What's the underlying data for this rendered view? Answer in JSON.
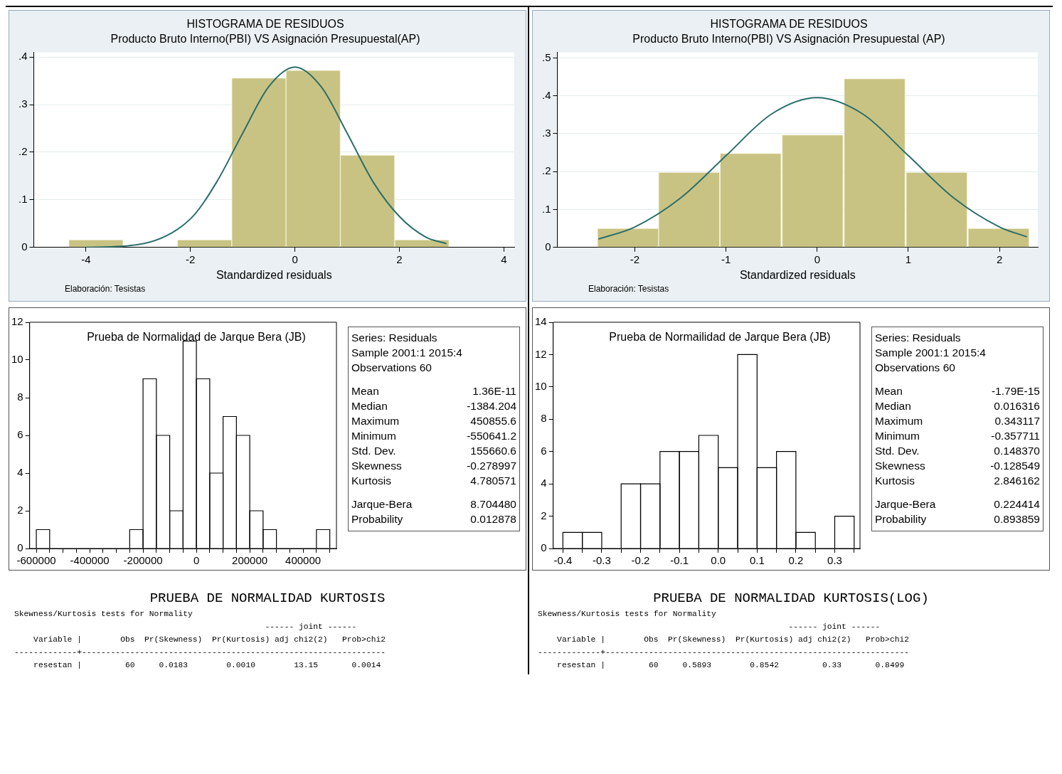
{
  "chart_data": [
    {
      "type": "histogram",
      "title": "HISTOGRAMA DE RESIDUOS",
      "subtitle": "Producto Bruto Interno(PBI) VS Asignación Presupuestal(AP)",
      "xlabel": "Standardized residuals",
      "annotations": [
        "Elaboración: Tesistas"
      ],
      "bins": [
        -4.33,
        -3.29,
        -2.25,
        -1.21,
        -0.17,
        0.87,
        1.91,
        2.95
      ],
      "values": [
        0.016,
        0,
        0.016,
        0.356,
        0.372,
        0.194,
        0.016
      ],
      "color": "#c9c383",
      "series": [
        {
          "type": "line",
          "color": "#2a6e6b",
          "x": [
            -4,
            -3,
            -2,
            -1.5,
            -1,
            -0.5,
            0,
            0.5,
            1,
            1.5,
            2,
            2.5,
            2.9
          ],
          "values": [
            0,
            0.006,
            0.06,
            0.137,
            0.24,
            0.338,
            0.379,
            0.338,
            0.24,
            0.137,
            0.065,
            0.022,
            0.008
          ]
        }
      ],
      "xlim": [
        -5,
        4.2
      ],
      "ylim": [
        0,
        0.41
      ],
      "xticks": [
        -4,
        -2,
        0,
        2,
        4
      ],
      "yticks": [
        0,
        {
          "value": 0.1,
          "label": ".1"
        },
        {
          "value": 0.2,
          "label": ".2"
        },
        {
          "value": 0.3,
          "label": ".3"
        },
        {
          "value": 0.4,
          "label": ".4"
        }
      ],
      "grid": "y"
    },
    {
      "type": "histogram",
      "title": "HISTOGRAMA DE RESIDUOS",
      "subtitle": "Producto Bruto Interno(PBI) VS Asignación Presupuestal (AP)",
      "xlabel": "Standardized residuals",
      "annotations": [
        "Elaboración: Tesistas"
      ],
      "bins": [
        -2.41,
        -1.74,
        -1.07,
        -0.39,
        0.29,
        0.97,
        1.65,
        2.33
      ],
      "values": [
        0.05,
        0.198,
        0.248,
        0.297,
        0.445,
        0.198,
        0.05
      ],
      "color": "#c9c383",
      "series": [
        {
          "type": "line",
          "color": "#2a6e6b",
          "x": [
            -2.4,
            -2,
            -1.5,
            -1,
            -0.5,
            0,
            0.5,
            1,
            1.5,
            2,
            2.3
          ],
          "values": [
            0.022,
            0.054,
            0.13,
            0.242,
            0.352,
            0.395,
            0.352,
            0.242,
            0.13,
            0.054,
            0.028
          ]
        }
      ],
      "xlim": [
        -2.85,
        2.42
      ],
      "ylim": [
        0,
        0.515
      ],
      "xticks": [
        -2,
        -1,
        0,
        1,
        2
      ],
      "yticks": [
        0,
        {
          "value": 0.1,
          "label": ".1"
        },
        {
          "value": 0.2,
          "label": ".2"
        },
        {
          "value": 0.3,
          "label": ".3"
        },
        {
          "value": 0.4,
          "label": ".4"
        },
        {
          "value": 0.5,
          "label": ".5"
        }
      ],
      "grid": "y"
    },
    {
      "type": "histogram",
      "title": "Prueba de Normalidad de Jarque Bera (JB)",
      "annotations": [
        "Series: Residuals",
        "Sample 2001:1 2015:4",
        "Observations 60",
        "Mean",
        "1.36E-11",
        "Median",
        "-1384.204",
        "Maximum",
        "450855.6",
        "Minimum",
        "-550641.2",
        "Std. Dev.",
        "155660.6",
        "Skewness",
        "-0.278997",
        "Kurtosis",
        "4.780571",
        "Jarque-Bera",
        "8.704480",
        "Probability",
        "0.012878"
      ],
      "bins": [
        -600000,
        -550000,
        -500000,
        -450000,
        -400000,
        -350000,
        -300000,
        -250000,
        -200000,
        -150000,
        -100000,
        -50000,
        0,
        50000,
        100000,
        150000,
        200000,
        250000,
        300000,
        350000,
        400000,
        450000,
        500000
      ],
      "values": [
        1,
        0,
        0,
        0,
        0,
        0,
        0,
        1,
        9,
        6,
        2,
        11,
        9,
        4,
        7,
        6,
        2,
        1,
        0,
        0,
        0,
        1
      ],
      "color": "#ffffff",
      "xlim": [
        -625000,
        525000
      ],
      "ylim": [
        0,
        12
      ],
      "xticks": [
        -600000,
        {
          "value": -550000,
          "label": null
        },
        {
          "value": -500000,
          "label": null
        },
        {
          "value": -450000,
          "label": null
        },
        -400000,
        {
          "value": -350000,
          "label": null
        },
        {
          "value": -300000,
          "label": null
        },
        {
          "value": -250000,
          "label": null
        },
        -200000,
        {
          "value": -150000,
          "label": null
        },
        {
          "value": -100000,
          "label": null
        },
        {
          "value": -50000,
          "label": null
        },
        0,
        {
          "value": 50000,
          "label": null
        },
        {
          "value": 100000,
          "label": null
        },
        {
          "value": 150000,
          "label": null
        },
        200000,
        {
          "value": 250000,
          "label": null
        },
        {
          "value": 300000,
          "label": null
        },
        {
          "value": 350000,
          "label": null
        },
        400000,
        {
          "value": 450000,
          "label": null
        },
        {
          "value": 500000,
          "label": null
        }
      ],
      "yticks": [
        0,
        2,
        4,
        6,
        8,
        10,
        12
      ]
    },
    {
      "type": "histogram",
      "title": "Prueba de Normailidad de Jarque Bera (JB)",
      "annotations": [
        "Series: Residuals",
        "Sample 2001:1 2015:4",
        "Observations 60",
        "Mean",
        "-1.79E-15",
        "Median",
        "0.016316",
        "Maximum",
        "0.343117",
        "Minimum",
        "-0.357711",
        "Std. Dev.",
        "0.148370",
        "Skewness",
        "-0.128549",
        "Kurtosis",
        "2.846162",
        "Jarque-Bera",
        "0.224414",
        "Probability",
        "0.893859"
      ],
      "bins": [
        -0.4,
        -0.35,
        -0.3,
        -0.25,
        -0.2,
        -0.15,
        -0.1,
        -0.05,
        0,
        0.05,
        0.1,
        0.15,
        0.2,
        0.25,
        0.3,
        0.35
      ],
      "values": [
        1,
        1,
        0,
        4,
        4,
        6,
        6,
        7,
        5,
        12,
        5,
        6,
        1,
        0,
        2
      ],
      "color": "#ffffff",
      "xlim": [
        -0.425,
        0.365
      ],
      "ylim": [
        0,
        14
      ],
      "xticks": [
        {
          "value": -0.4,
          "label": "-0.4"
        },
        {
          "value": -0.35,
          "label": null
        },
        {
          "value": -0.3,
          "label": "-0.3"
        },
        {
          "value": -0.25,
          "label": null
        },
        {
          "value": -0.2,
          "label": "-0.2"
        },
        {
          "value": -0.15,
          "label": null
        },
        {
          "value": -0.1,
          "label": "-0.1"
        },
        {
          "value": -0.05,
          "label": null
        },
        {
          "value": 0,
          "label": "0.0"
        },
        {
          "value": 0.05,
          "label": null
        },
        {
          "value": 0.1,
          "label": "0.1"
        },
        {
          "value": 0.15,
          "label": null
        },
        {
          "value": 0.2,
          "label": "0.2"
        },
        {
          "value": 0.25,
          "label": null
        },
        {
          "value": 0.3,
          "label": "0.3"
        },
        {
          "value": 0.35,
          "label": null
        }
      ],
      "yticks": [
        0,
        2,
        4,
        6,
        8,
        10,
        12,
        14
      ]
    },
    {
      "type": "other",
      "title": "PRUEBA DE NORMALIDAD KURTOSIS",
      "annotations": [
        "Skewness/Kurtosis tests for Normality",
        "                                                    ------ joint ------",
        "    Variable |        Obs  Pr(Skewness)  Pr(Kurtosis) adj chi2(2)   Prob>chi2",
        "-------------+---------------------------------------------------------------",
        "    resestan |         60     0.0183        0.0010        13.15       0.0014"
      ]
    },
    {
      "type": "other",
      "title": "PRUEBA DE NORMALIDAD KURTOSIS(LOG)",
      "annotations": [
        "Skewness/Kurtosis tests for Normality",
        "                                                    ------ joint ------",
        "    Variable |        Obs  Pr(Skewness)  Pr(Kurtosis) adj chi2(2)   Prob>chi2",
        "-------------+---------------------------------------------------------------",
        "    resestan |         60     0.5893        0.8542         0.33       0.8499"
      ]
    }
  ]
}
